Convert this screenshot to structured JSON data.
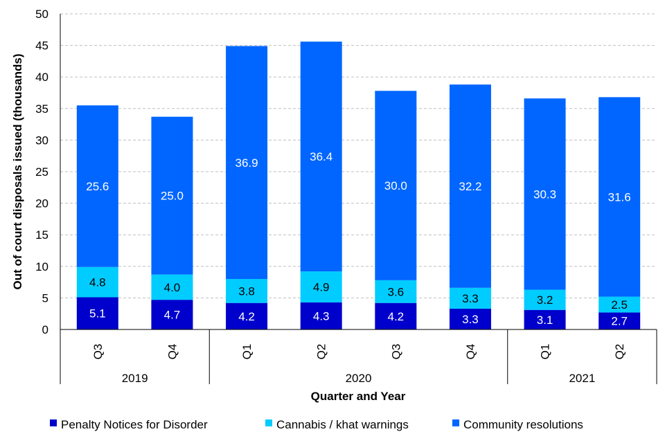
{
  "chart_data": {
    "type": "bar",
    "stacked": true,
    "title": "",
    "xlabel": "Quarter and Year",
    "ylabel": "Out of court disposals issued (thousands)",
    "ylim": [
      0,
      50
    ],
    "yticks": [
      0,
      5,
      10,
      15,
      20,
      25,
      30,
      35,
      40,
      45,
      50
    ],
    "grid": "horizontal dashed",
    "categories": [
      "Q3",
      "Q4",
      "Q1",
      "Q2",
      "Q3",
      "Q4",
      "Q1",
      "Q2"
    ],
    "groups": [
      {
        "label": "2019",
        "count": 2
      },
      {
        "label": "2020",
        "count": 4
      },
      {
        "label": "2021",
        "count": 2
      }
    ],
    "series": [
      {
        "name": "Penalty Notices for Disorder",
        "color": "#0000CC",
        "label_color": "#ffffff",
        "values": [
          5.1,
          4.7,
          4.2,
          4.3,
          4.2,
          3.3,
          3.1,
          2.7
        ]
      },
      {
        "name": "Cannabis / khat warnings",
        "color": "#00CCFF",
        "label_color": "#000000",
        "values": [
          4.8,
          4.0,
          3.8,
          4.9,
          3.6,
          3.3,
          3.2,
          2.5
        ]
      },
      {
        "name": "Community resolutions",
        "color": "#0066FF",
        "label_color": "#ffffff",
        "values": [
          25.6,
          25.0,
          36.9,
          36.4,
          30.0,
          32.2,
          30.3,
          31.6
        ]
      }
    ],
    "legend_position": "bottom"
  }
}
